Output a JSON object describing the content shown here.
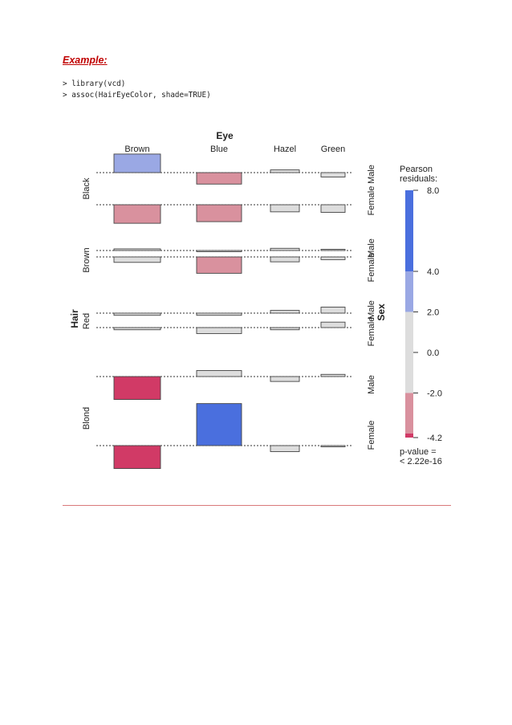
{
  "document": {
    "heading": "Example:",
    "code_lines": [
      "> library(vcd)",
      "> assoc(HairEyeColor, shade=TRUE)"
    ]
  },
  "chart_data": {
    "type": "association-plot",
    "title": "",
    "variables": {
      "top": "Eye",
      "left": "Hair",
      "right": "Sex"
    },
    "eye_levels": [
      "Brown",
      "Blue",
      "Hazel",
      "Green"
    ],
    "hair_levels": [
      "Black",
      "Brown",
      "Red",
      "Blond"
    ],
    "sex_levels": [
      "Male",
      "Female"
    ],
    "colors": {
      "dark_blue": "#4a6fde",
      "light_blue": "#9aa8e4",
      "grey": "#dddddd",
      "light_red": "#d9919e",
      "dark_red": "#d13a66"
    },
    "residuals": [
      {
        "hair": "Black",
        "sex": "Male",
        "values": [
          3.4,
          -2.1,
          0.5,
          -0.8
        ]
      },
      {
        "hair": "Black",
        "sex": "Female",
        "values": [
          -3.4,
          -3.1,
          -1.3,
          -1.4
        ]
      },
      {
        "hair": "Brown",
        "sex": "Male",
        "values": [
          0.3,
          -0.1,
          0.4,
          0.1
        ]
      },
      {
        "hair": "Brown",
        "sex": "Female",
        "values": [
          -1.0,
          -3.0,
          -0.9,
          -0.5
        ]
      },
      {
        "hair": "Red",
        "sex": "Male",
        "values": [
          -0.4,
          -0.4,
          0.5,
          1.1
        ]
      },
      {
        "hair": "Red",
        "sex": "Female",
        "values": [
          -0.4,
          -1.1,
          -0.4,
          1.0
        ]
      },
      {
        "hair": "Blond",
        "sex": "Male",
        "values": [
          -4.2,
          1.1,
          -0.9,
          0.4
        ]
      },
      {
        "hair": "Blond",
        "sex": "Female",
        "values": [
          -4.2,
          7.7,
          -1.1,
          -0.1
        ]
      }
    ],
    "legend": {
      "title": [
        "Pearson",
        "residuals:"
      ],
      "ticks": [
        "8.0",
        "4.0",
        "2.0",
        "0.0",
        "-2.0",
        "-4.2"
      ],
      "bands": [
        {
          "from": 4.0,
          "to": 8.0,
          "color": "#4a6fde"
        },
        {
          "from": 2.0,
          "to": 4.0,
          "color": "#9aa8e4"
        },
        {
          "from": -2.0,
          "to": 2.0,
          "color": "#dddddd"
        },
        {
          "from": -4.0,
          "to": -2.0,
          "color": "#d9919e"
        },
        {
          "from": -4.2,
          "to": -4.0,
          "color": "#d13a66"
        }
      ],
      "pvalue": [
        "p-value =",
        "< 2.22e-16"
      ]
    }
  }
}
